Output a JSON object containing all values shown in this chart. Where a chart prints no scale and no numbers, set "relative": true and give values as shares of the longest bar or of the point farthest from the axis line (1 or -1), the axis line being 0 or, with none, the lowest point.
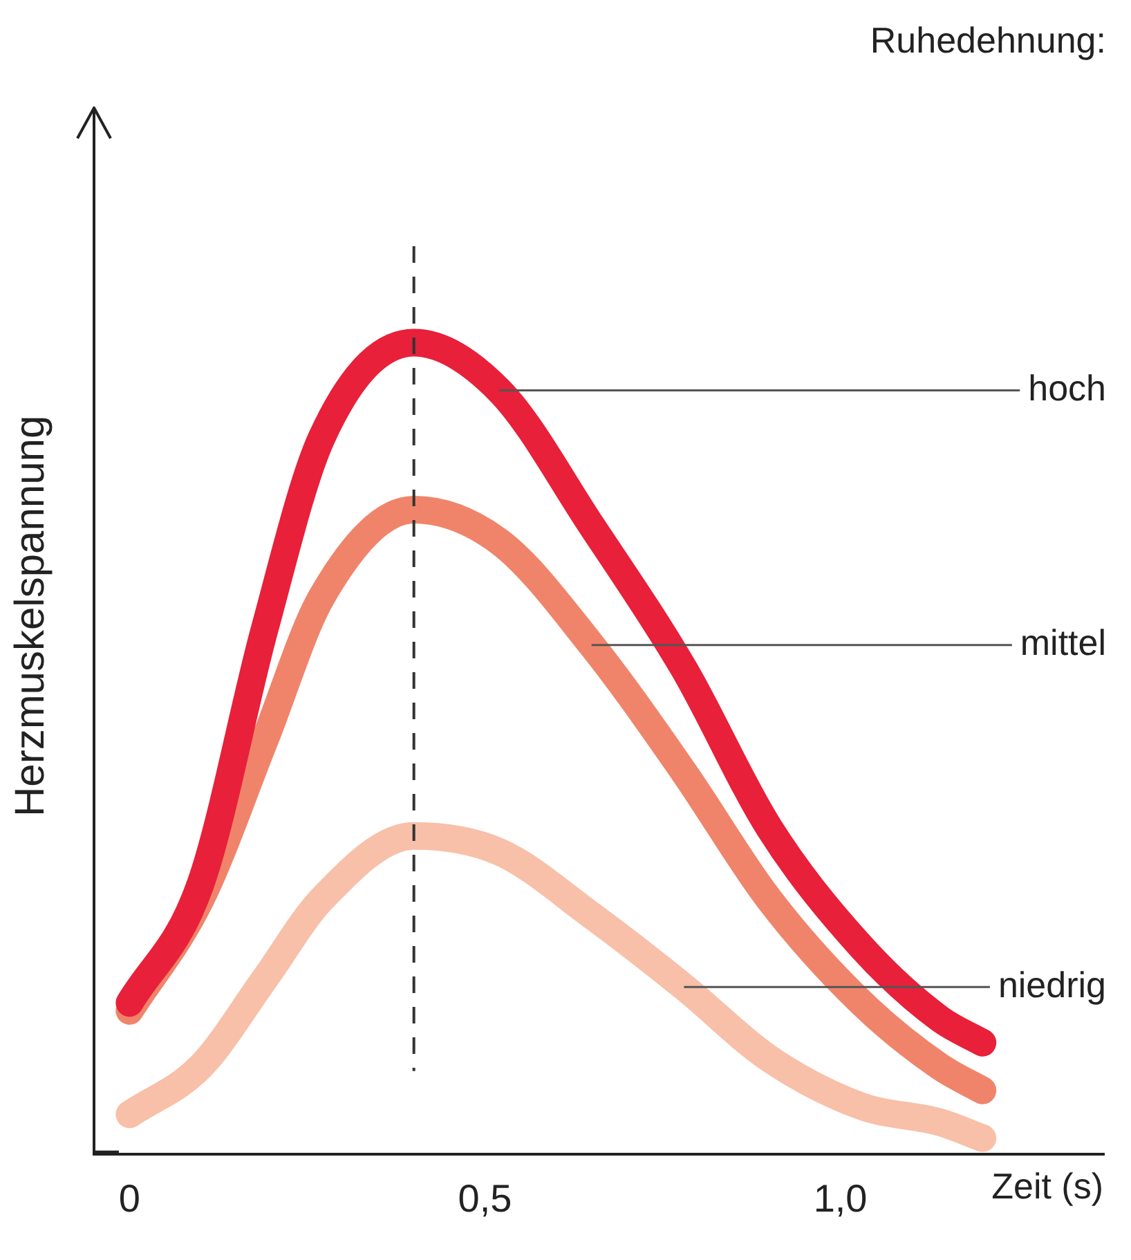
{
  "chart_data": {
    "type": "line",
    "relative": true,
    "ylabel": "Herzmuskelspannung",
    "xlabel": "Zeit (s)",
    "legend_title": "Ruhedehnung:",
    "legend": false,
    "grid": false,
    "marker": "none",
    "line_style": "solid",
    "x": [
      0,
      0.1,
      0.19,
      0.27,
      0.4,
      0.52,
      0.65,
      0.78,
      0.9,
      1.03,
      1.14,
      1.2
    ],
    "xlim": [
      -0.05,
      1.37
    ],
    "xticks": [
      0,
      {
        "value": 0.5,
        "label": "0,5"
      },
      {
        "value": 1.0,
        "label": "1,0"
      }
    ],
    "ref_lines": [
      {
        "axis": "x",
        "value": 0.4,
        "color": "#333333",
        "line_style": "dashed"
      }
    ],
    "series": [
      {
        "name": "hoch",
        "color": "#e8203a",
        "values": [
          0.17,
          0.32,
          0.64,
          0.88,
          1,
          0.94,
          0.77,
          0.59,
          0.39,
          0.24,
          0.15,
          0.12
        ]
      },
      {
        "name": "mittel",
        "color": "#f0846a",
        "values": [
          0.16,
          0.3,
          0.5,
          0.68,
          0.79,
          0.75,
          0.62,
          0.46,
          0.3,
          0.17,
          0.09,
          0.06
        ]
      },
      {
        "name": "niedrig",
        "color": "#f8c0a8",
        "values": [
          0.03,
          0.09,
          0.2,
          0.3,
          0.38,
          0.36,
          0.28,
          0.19,
          0.1,
          0.04,
          0.02,
          0.0
        ]
      }
    ]
  }
}
